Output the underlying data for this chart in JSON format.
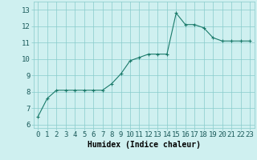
{
  "x": [
    0,
    1,
    2,
    3,
    4,
    5,
    6,
    7,
    8,
    9,
    10,
    11,
    12,
    13,
    14,
    15,
    16,
    17,
    18,
    19,
    20,
    21,
    22,
    23
  ],
  "y": [
    6.5,
    7.6,
    8.1,
    8.1,
    8.1,
    8.1,
    8.1,
    8.1,
    8.5,
    9.1,
    9.9,
    10.1,
    10.3,
    10.3,
    10.3,
    12.8,
    12.1,
    12.1,
    11.9,
    11.3,
    11.1,
    11.1,
    11.1,
    11.1
  ],
  "line_color": "#1a7a6a",
  "marker": "+",
  "marker_size": 3,
  "bg_color": "#cff0f0",
  "grid_color": "#88cccc",
  "xlabel": "Humidex (Indice chaleur)",
  "ylabel_ticks": [
    6,
    7,
    8,
    9,
    10,
    11,
    12,
    13
  ],
  "xtick_labels": [
    "0",
    "1",
    "2",
    "3",
    "4",
    "5",
    "6",
    "7",
    "8",
    "9",
    "10",
    "11",
    "12",
    "13",
    "14",
    "15",
    "16",
    "17",
    "18",
    "19",
    "20",
    "21",
    "22",
    "23"
  ],
  "ylim": [
    5.8,
    13.5
  ],
  "xlim": [
    -0.5,
    23.5
  ],
  "xlabel_fontsize": 7,
  "tick_fontsize": 6.5
}
